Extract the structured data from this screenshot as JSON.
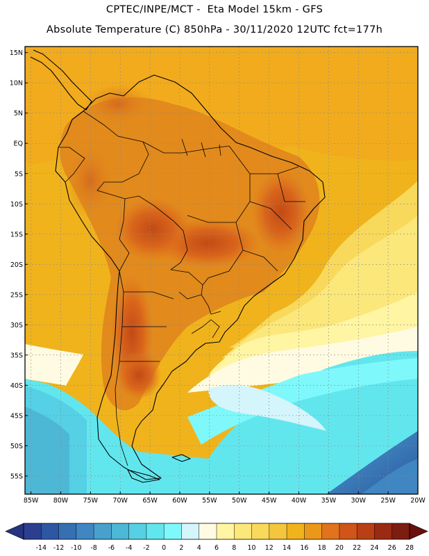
{
  "header": {
    "line1": "CPTEC/INPE/MCT -  Eta Model 15km - GFS",
    "line2": "Absolute Temperature (C) 850hPa - 30/11/2020 12UTC fct=177h"
  },
  "map": {
    "region": "South America",
    "variable": "Absolute Temperature (C)",
    "level": "850hPa",
    "lon_range": [
      -86,
      -20
    ],
    "lat_range": [
      -58,
      16
    ],
    "lat_labels": [
      {
        "lat": 15,
        "text": "15N"
      },
      {
        "lat": 10,
        "text": "10N"
      },
      {
        "lat": 5,
        "text": "5N"
      },
      {
        "lat": 0,
        "text": "EQ"
      },
      {
        "lat": -5,
        "text": "5S"
      },
      {
        "lat": -10,
        "text": "10S"
      },
      {
        "lat": -15,
        "text": "15S"
      },
      {
        "lat": -20,
        "text": "20S"
      },
      {
        "lat": -25,
        "text": "25S"
      },
      {
        "lat": -30,
        "text": "30S"
      },
      {
        "lat": -35,
        "text": "35S"
      },
      {
        "lat": -40,
        "text": "40S"
      },
      {
        "lat": -45,
        "text": "45S"
      },
      {
        "lat": -50,
        "text": "50S"
      },
      {
        "lat": -55,
        "text": "55S"
      }
    ],
    "lon_labels": [
      {
        "lon": -85,
        "text": "85W"
      },
      {
        "lon": -80,
        "text": "80W"
      },
      {
        "lon": -75,
        "text": "75W"
      },
      {
        "lon": -70,
        "text": "70W"
      },
      {
        "lon": -65,
        "text": "65W"
      },
      {
        "lon": -60,
        "text": "60W"
      },
      {
        "lon": -55,
        "text": "55W"
      },
      {
        "lon": -50,
        "text": "50W"
      },
      {
        "lon": -45,
        "text": "45W"
      },
      {
        "lon": -40,
        "text": "40W"
      },
      {
        "lon": -35,
        "text": "35W"
      },
      {
        "lon": -30,
        "text": "30W"
      },
      {
        "lon": -25,
        "text": "25W"
      },
      {
        "lon": -20,
        "text": "20W"
      }
    ]
  },
  "colorbar": {
    "labels": [
      "-14",
      "-12",
      "-10",
      "-8",
      "-6",
      "-4",
      "-2",
      "0",
      "2",
      "4",
      "6",
      "8",
      "10",
      "12",
      "14",
      "16",
      "18",
      "20",
      "22",
      "24",
      "26",
      "28"
    ],
    "colors": [
      "#2c3f8f",
      "#2d57a3",
      "#3670b3",
      "#3f86c2",
      "#48a0cd",
      "#4db8d6",
      "#55d0e4",
      "#62e6ee",
      "#7ef8fb",
      "#d4f5fb",
      "#fffbe2",
      "#fff5a2",
      "#fbe77a",
      "#f8d95b",
      "#f3c63e",
      "#f0b31c",
      "#ea971a",
      "#e0731c",
      "#cf5518",
      "#b93f15",
      "#9b2a12",
      "#7d1c10"
    ],
    "under_color": "#243480",
    "over_color": "#6a0f0d"
  }
}
